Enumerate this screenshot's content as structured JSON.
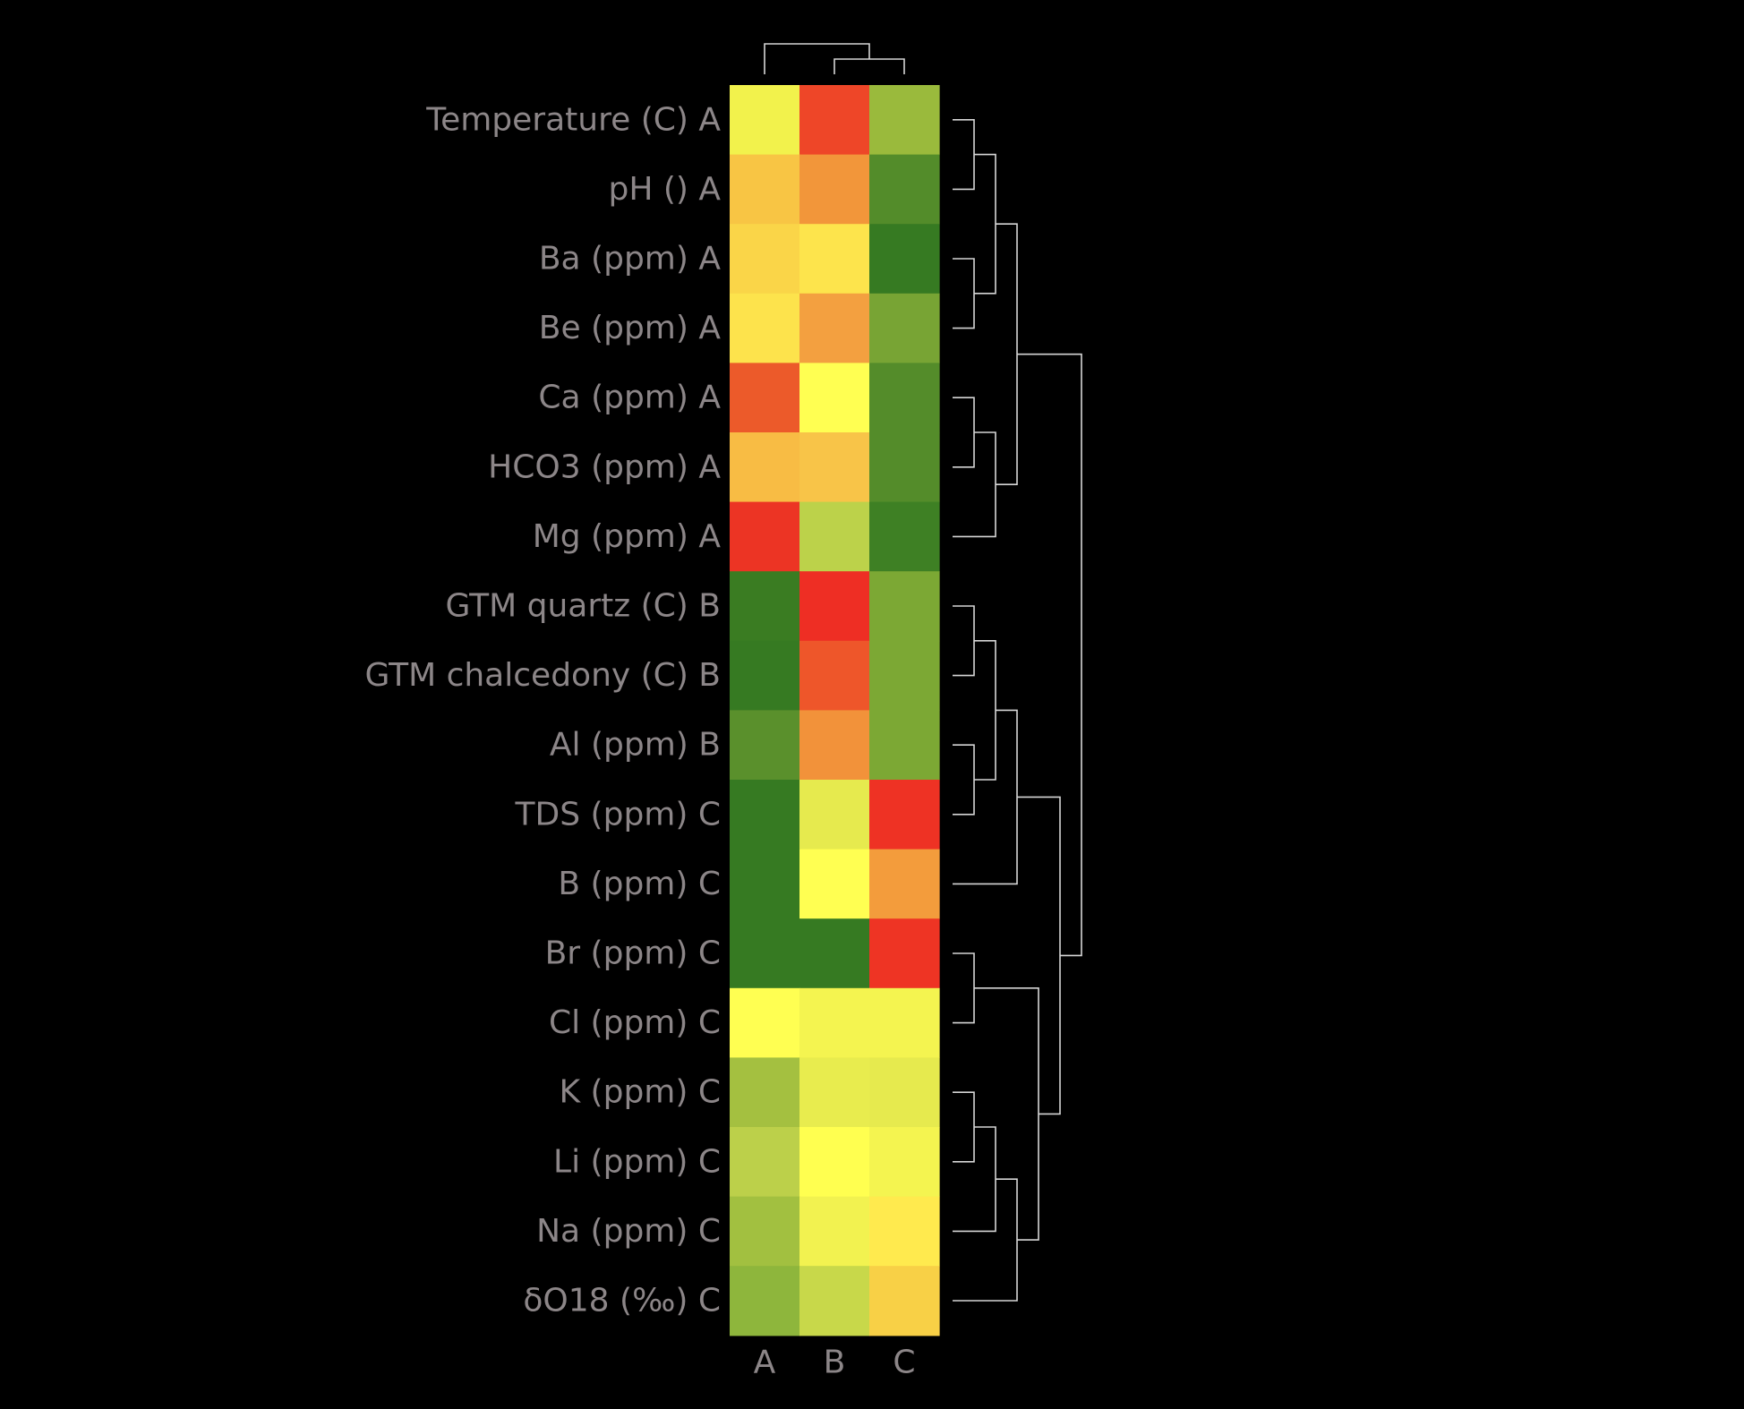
{
  "chart_data": {
    "type": "heatmap",
    "title": "",
    "xlabel": "",
    "ylabel": "",
    "columns": [
      "A",
      "B",
      "C"
    ],
    "rows": [
      "Temperature (C) A",
      "pH () A",
      "Ba (ppm) A",
      "Be (ppm) A",
      "Ca (ppm) A",
      "HCO3 (ppm) A",
      "Mg (ppm) A",
      "GTM quartz (C) B",
      "GTM chalcedony (C) B",
      "Al (ppm) B",
      "TDS (ppm) C",
      "B (ppm) C",
      "Br (ppm) C",
      "Cl (ppm) C",
      "K (ppm) C",
      "Li (ppm) C",
      "Na (ppm) C",
      "δO18 (‰) C"
    ],
    "cell_colors": [
      [
        "#f2f24c",
        "#ee4628",
        "#9aba3c"
      ],
      [
        "#f8c544",
        "#f2963a",
        "#538c2a"
      ],
      [
        "#fad548",
        "#fde44c",
        "#367a22"
      ],
      [
        "#fde34c",
        "#f3a040",
        "#78a434"
      ],
      [
        "#ec5a2a",
        "#ffff52",
        "#548c2a"
      ],
      [
        "#f8bc44",
        "#f8c448",
        "#548c2a"
      ],
      [
        "#ec3424",
        "#bcd24a",
        "#3e8024"
      ],
      [
        "#3a7c22",
        "#ee2e24",
        "#7ca834"
      ],
      [
        "#367a22",
        "#ee562a",
        "#7ca834"
      ],
      [
        "#5a902c",
        "#f2923a",
        "#7ca834"
      ],
      [
        "#367a22",
        "#e6ea4e",
        "#ee3224"
      ],
      [
        "#367a22",
        "#ffff52",
        "#f39c3c"
      ],
      [
        "#367a22",
        "#367a22",
        "#ee3424"
      ],
      [
        "#ffff52",
        "#f4f450",
        "#f4f450"
      ],
      [
        "#a4c040",
        "#e8ec4e",
        "#e6ea4e"
      ],
      [
        "#bcd04a",
        "#ffff50",
        "#f4f450"
      ],
      [
        "#a2c040",
        "#f2f250",
        "#ffea4e"
      ],
      [
        "#8eb63c",
        "#c8d84a",
        "#f8d046"
      ]
    ],
    "row_dendrogram": [
      [
        0,
        1
      ],
      [
        2,
        3
      ],
      [
        4,
        5
      ],
      [
        -3,
        6
      ],
      [
        -1,
        -2
      ],
      [
        -5,
        -4
      ],
      [
        7,
        8
      ],
      [
        9,
        10
      ],
      [
        -7,
        -8
      ],
      [
        -9,
        11
      ],
      [
        12,
        13
      ],
      [
        14,
        15
      ],
      [
        -12,
        16
      ],
      [
        -13,
        17
      ],
      [
        -11,
        -14
      ],
      [
        -10,
        -15
      ],
      [
        -6,
        -16
      ]
    ],
    "column_dendrogram": [
      [
        1,
        2
      ],
      [
        0,
        -1
      ]
    ],
    "grid": false,
    "legend": "none"
  }
}
